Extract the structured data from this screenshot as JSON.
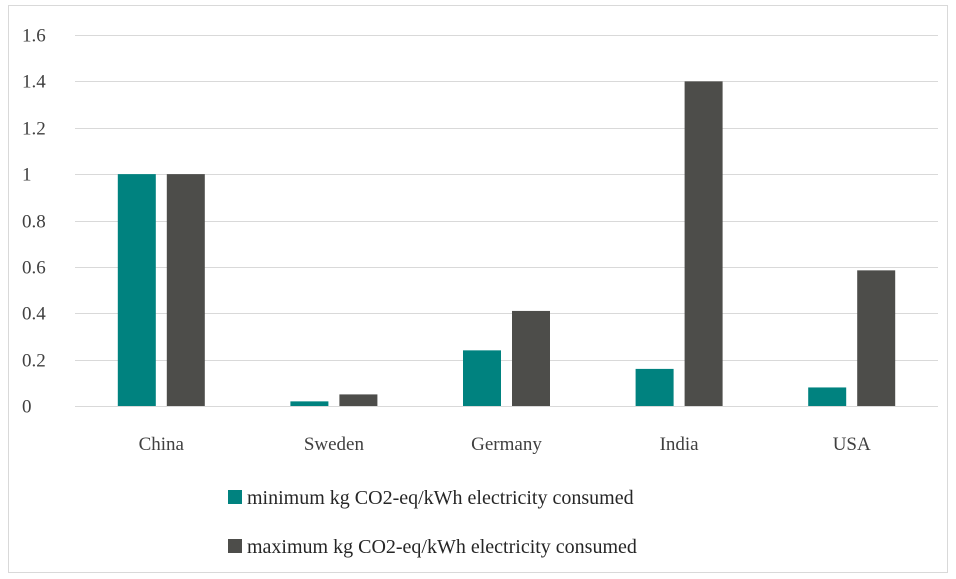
{
  "chart_data": {
    "type": "bar",
    "title": "",
    "xlabel": "",
    "ylabel": "",
    "categories": [
      "China",
      "Sweden",
      "Germany",
      "India",
      "USA"
    ],
    "series": [
      {
        "name": "minimum kg CO2-eq/kWh electricity consumed",
        "color": "#00827f",
        "values": [
          1.0,
          0.02,
          0.24,
          0.16,
          0.08
        ]
      },
      {
        "name": "maximum kg CO2-eq/kWh electricity consumed",
        "color": "#4d4d4a",
        "values": [
          1.0,
          0.05,
          0.41,
          1.4,
          0.585
        ]
      }
    ],
    "ylim": [
      0,
      1.6
    ],
    "yticks": [
      "0",
      "0.2",
      "0.4",
      "0.6",
      "0.8",
      "1",
      "1.2",
      "1.4",
      "1.6"
    ],
    "grid": true,
    "legend_position": "bottom",
    "gridline_color": "#d9d9d9"
  }
}
